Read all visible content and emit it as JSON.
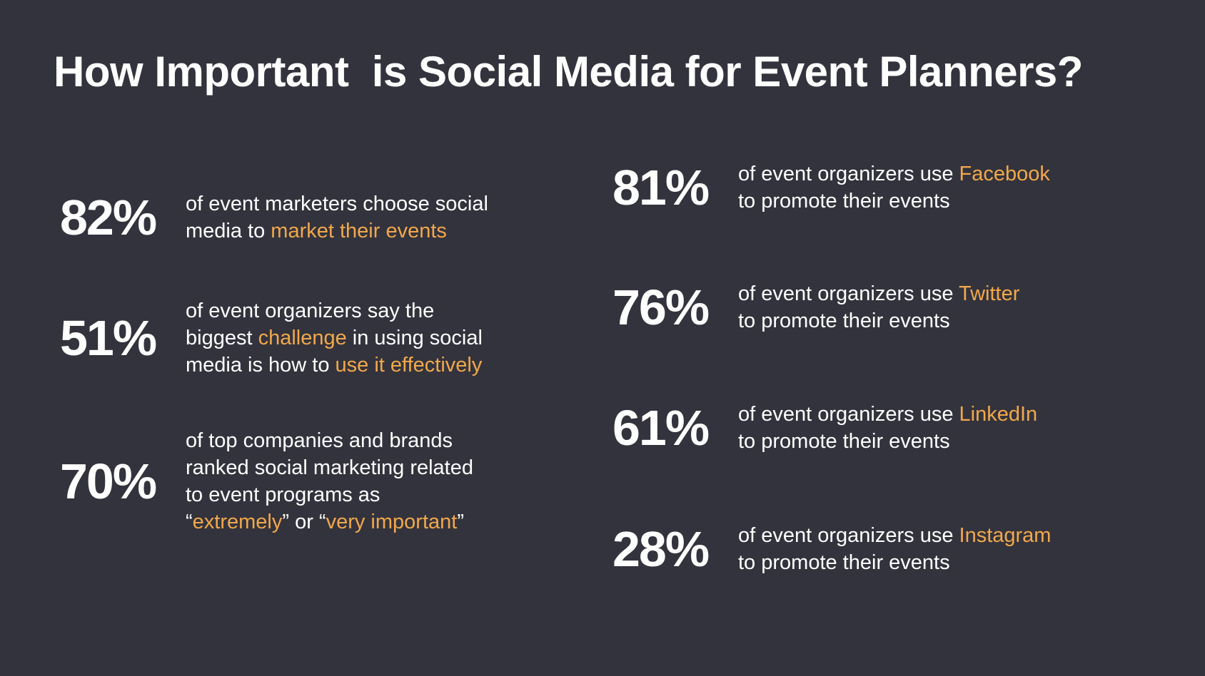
{
  "title": "How Important  is Social Media for Event Planners?",
  "accent_color": "#f2a84a",
  "left": [
    {
      "stat": "82%",
      "lines": [
        [
          {
            "text": "of event marketers choose social",
            "accent": false
          }
        ],
        [
          {
            "text": "media to ",
            "accent": false
          },
          {
            "text": "market their events",
            "accent": true
          }
        ]
      ]
    },
    {
      "stat": "51%",
      "lines": [
        [
          {
            "text": "of event organizers say the",
            "accent": false
          }
        ],
        [
          {
            "text": "biggest ",
            "accent": false
          },
          {
            "text": "challenge",
            "accent": true
          },
          {
            "text": " in using social",
            "accent": false
          }
        ],
        [
          {
            "text": "media is how to ",
            "accent": false
          },
          {
            "text": "use it effectively",
            "accent": true
          }
        ]
      ]
    },
    {
      "stat": "70%",
      "lines": [
        [
          {
            "text": "of top companies and brands",
            "accent": false
          }
        ],
        [
          {
            "text": "ranked social marketing related",
            "accent": false
          }
        ],
        [
          {
            "text": "to event programs as",
            "accent": false
          }
        ],
        [
          {
            "text": "“",
            "accent": false
          },
          {
            "text": "extremely",
            "accent": true
          },
          {
            "text": "” or “",
            "accent": false
          },
          {
            "text": "very important",
            "accent": true
          },
          {
            "text": "”",
            "accent": false
          }
        ]
      ]
    }
  ],
  "right": [
    {
      "stat": "81%",
      "lines": [
        [
          {
            "text": "of event organizers use ",
            "accent": false
          },
          {
            "text": "Facebook",
            "accent": true
          }
        ],
        [
          {
            "text": "to promote their events",
            "accent": false
          }
        ]
      ]
    },
    {
      "stat": "76%",
      "lines": [
        [
          {
            "text": "of event organizers use ",
            "accent": false
          },
          {
            "text": "Twitter",
            "accent": true
          }
        ],
        [
          {
            "text": "to promote their events",
            "accent": false
          }
        ]
      ]
    },
    {
      "stat": "61%",
      "lines": [
        [
          {
            "text": "of event organizers use ",
            "accent": false
          },
          {
            "text": "LinkedIn",
            "accent": true
          }
        ],
        [
          {
            "text": "to promote their events",
            "accent": false
          }
        ]
      ]
    },
    {
      "stat": "28%",
      "lines": [
        [
          {
            "text": "of event organizers use ",
            "accent": false
          },
          {
            "text": "Instagram",
            "accent": true
          }
        ],
        [
          {
            "text": "to promote their events",
            "accent": false
          }
        ]
      ]
    }
  ]
}
